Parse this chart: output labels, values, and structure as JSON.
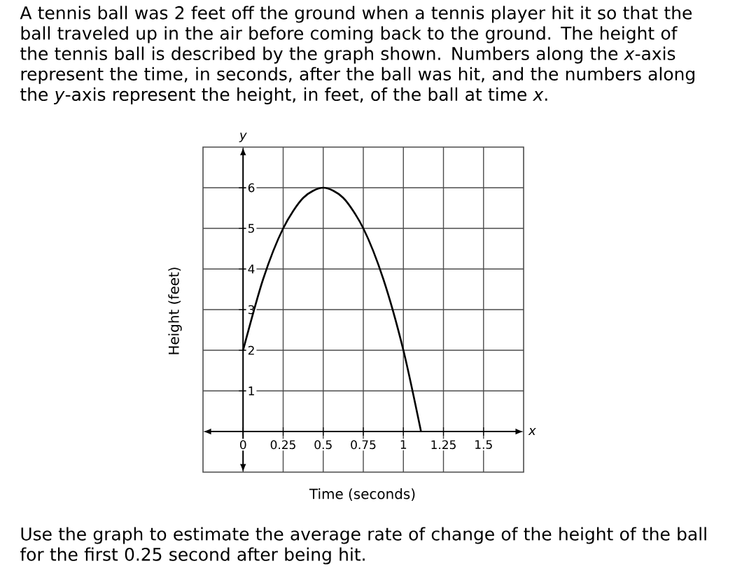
{
  "chart_data": {
    "type": "line",
    "title": "A tennis ball was 2 feet off the ground when a tennis player hit it so that the ball traveled up in the air before coming back to the ground. The height of the tennis ball is described by the graph shown. Numbers along the *x*-axis represent the time, in seconds, after the ball was hit, and the numbers along the *y*-axis represent the height, in feet, of the ball at time *x*.",
    "xlabel": "Time (seconds)",
    "ylabel": "Height (feet)",
    "annotations": [
      "x",
      "y",
      "Use the graph to estimate the average rate of change of the height of the ball for the first 0.25 second after being hit."
    ],
    "x": [
      0,
      0.125,
      0.25,
      0.375,
      0.5,
      0.625,
      0.75,
      0.875,
      1,
      1.11
    ],
    "series": [
      {
        "color": "#000000",
        "values": [
          2,
          3.75,
          5,
          5.75,
          6,
          5.75,
          5,
          3.75,
          2,
          0
        ]
      }
    ],
    "xlim": [
      -0.25,
      1.75
    ],
    "ylim": [
      -1,
      7
    ],
    "xticks": [
      0,
      0.25,
      0.5,
      0.75,
      1,
      1.25,
      1.5
    ],
    "yticks": [
      1,
      2,
      3,
      4,
      5,
      6
    ],
    "grid": true,
    "marker": "none",
    "line_style": "solid"
  }
}
